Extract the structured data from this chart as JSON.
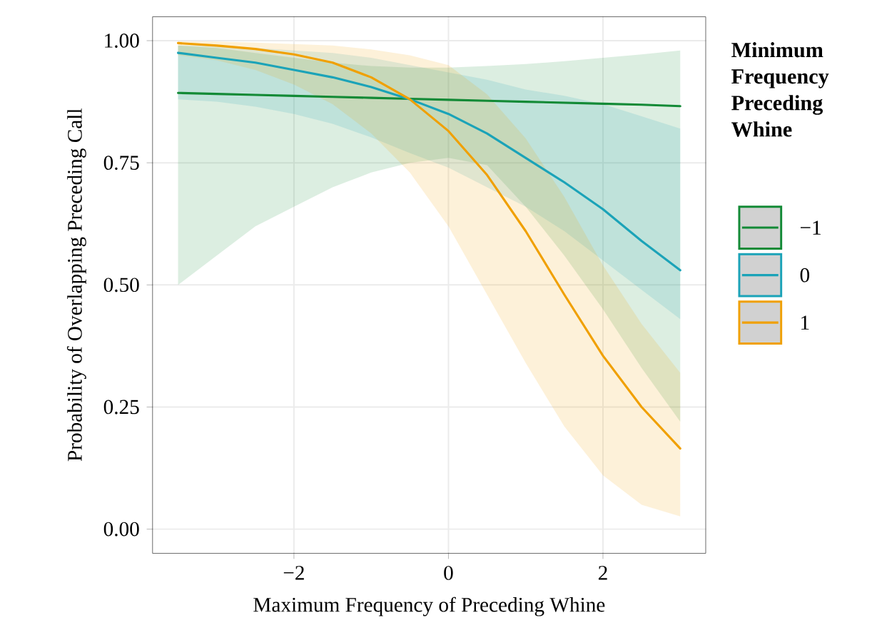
{
  "chart_data": {
    "type": "line",
    "xlabel": "Maximum Frequency of Preceding Whine",
    "ylabel": "Probability of Overlapping Preceding Call",
    "legend_title": "**Minimum Frequency Preceding Whine**",
    "x": [
      -3.5,
      -3,
      -2.5,
      -2,
      -1.5,
      -1,
      -0.5,
      0,
      0.5,
      1,
      1.5,
      2,
      2.5,
      3
    ],
    "series": [
      {
        "name": "−1",
        "color": "#138a36",
        "values": [
          0.893,
          0.891,
          0.889,
          0.887,
          0.885,
          0.883,
          0.881,
          0.879,
          0.877,
          0.875,
          0.873,
          0.871,
          0.869,
          0.866
        ],
        "lower": [
          0.5,
          0.56,
          0.62,
          0.66,
          0.7,
          0.73,
          0.75,
          0.76,
          0.745,
          0.66,
          0.56,
          0.45,
          0.33,
          0.22
        ],
        "upper": [
          0.99,
          0.985,
          0.975,
          0.965,
          0.955,
          0.948,
          0.945,
          0.945,
          0.948,
          0.952,
          0.958,
          0.965,
          0.972,
          0.98
        ]
      },
      {
        "name": "0",
        "color": "#1ba3b8",
        "values": [
          0.975,
          0.965,
          0.955,
          0.94,
          0.925,
          0.905,
          0.88,
          0.85,
          0.81,
          0.76,
          0.71,
          0.655,
          0.59,
          0.53
        ],
        "lower": [
          0.88,
          0.875,
          0.865,
          0.85,
          0.83,
          0.802,
          0.77,
          0.74,
          0.7,
          0.66,
          0.61,
          0.55,
          0.49,
          0.43
        ],
        "upper": [
          0.99,
          0.99,
          0.985,
          0.98,
          0.975,
          0.965,
          0.95,
          0.935,
          0.92,
          0.9,
          0.887,
          0.87,
          0.845,
          0.82
        ]
      },
      {
        "name": "1",
        "color": "#f0a000",
        "values": [
          0.995,
          0.99,
          0.983,
          0.972,
          0.955,
          0.925,
          0.88,
          0.815,
          0.725,
          0.61,
          0.48,
          0.355,
          0.25,
          0.165
        ],
        "lower": [
          0.97,
          0.96,
          0.94,
          0.91,
          0.87,
          0.81,
          0.73,
          0.62,
          0.48,
          0.34,
          0.21,
          0.11,
          0.05,
          0.026
        ],
        "upper": [
          0.999,
          0.998,
          0.996,
          0.993,
          0.99,
          0.982,
          0.97,
          0.95,
          0.89,
          0.8,
          0.68,
          0.54,
          0.42,
          0.32
        ]
      }
    ],
    "xlim": [
      -3.83,
      3.33
    ],
    "ylim": [
      -0.049,
      1.049
    ],
    "xticks": [
      {
        "value": -2,
        "label": "−2"
      },
      0,
      2
    ],
    "yticks": [
      {
        "value": 0,
        "label": "0.00"
      },
      {
        "value": 0.25,
        "label": "0.25"
      },
      {
        "value": 0.5,
        "label": "0.50"
      },
      {
        "value": 0.75,
        "label": "0.75"
      },
      {
        "value": 1,
        "label": "1.00"
      }
    ],
    "grid": true,
    "legend": "right",
    "marker": "none",
    "line_style": "solid"
  }
}
